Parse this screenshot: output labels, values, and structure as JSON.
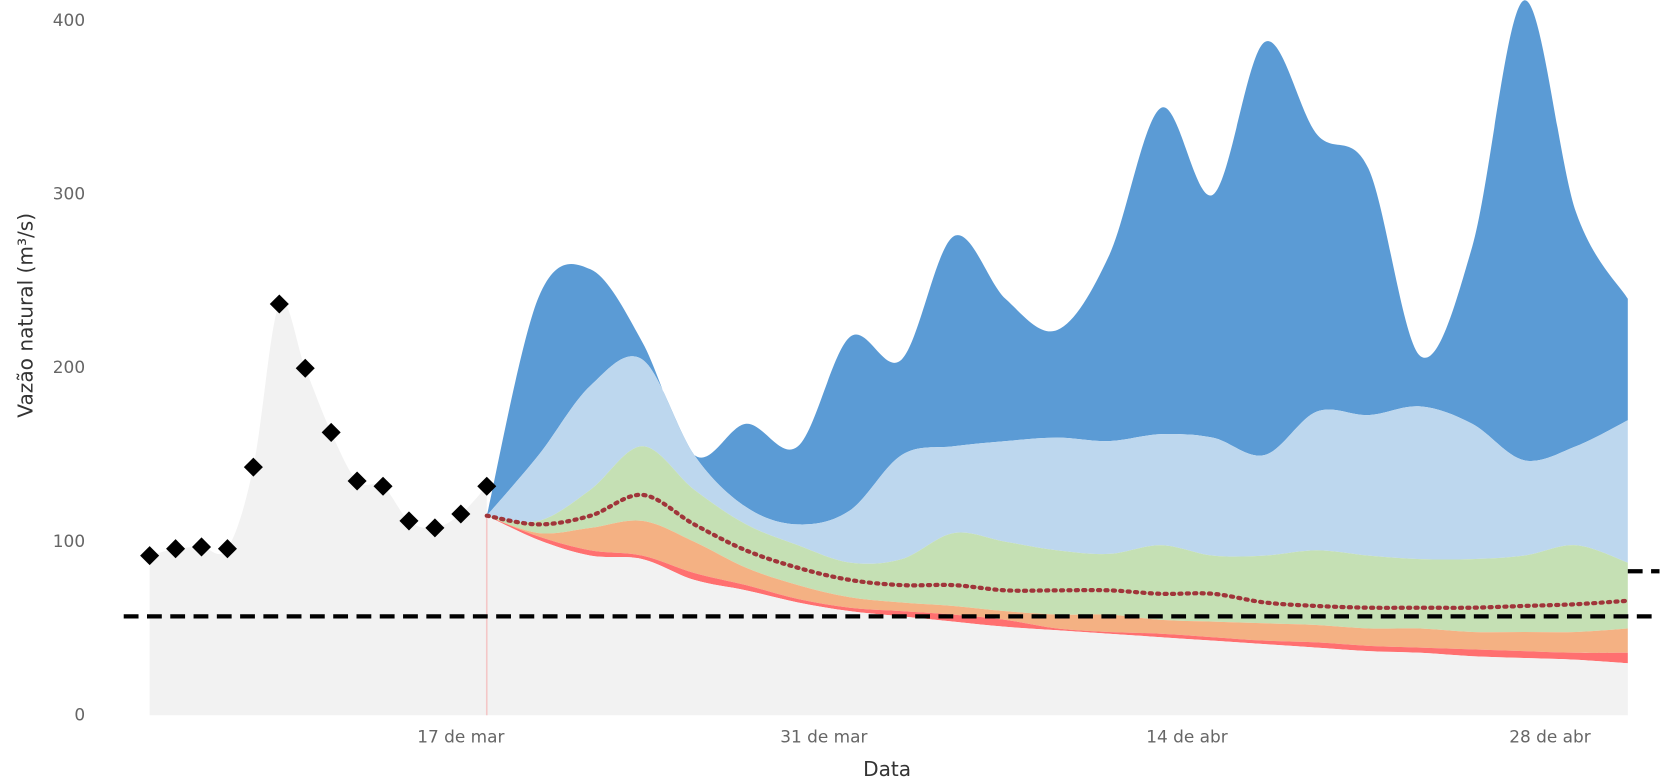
{
  "chart_data": {
    "type": "area",
    "x_label": "Data",
    "y_label": "Vazão natural (m³/s)",
    "xlim": [
      "03-04",
      "05-02"
    ],
    "xticks": [
      {
        "value": "03-17",
        "label": "17 de mar"
      },
      {
        "value": "03-31",
        "label": "31 de mar"
      },
      {
        "value": "04-14",
        "label": "14 de abr"
      },
      {
        "value": "04-28",
        "label": "28 de abr"
      }
    ],
    "ylim": [
      0,
      410
    ],
    "yticks": [
      0,
      100,
      200,
      300,
      400
    ],
    "observed": {
      "x": [
        "03-05",
        "03-06",
        "03-07",
        "03-08",
        "03-09",
        "03-10",
        "03-11",
        "03-12",
        "03-13",
        "03-14",
        "03-15",
        "03-16",
        "03-17",
        "03-18"
      ],
      "values": [
        92,
        96,
        97,
        96,
        143,
        237,
        200,
        163,
        135,
        132,
        112,
        108,
        116,
        132
      ],
      "color": "#000000",
      "fill": "#f2f2f2"
    },
    "x": [
      "03-18",
      "03-20",
      "03-22",
      "03-24",
      "03-26",
      "03-28",
      "03-30",
      "04-01",
      "04-03",
      "04-05",
      "04-07",
      "04-09",
      "04-11",
      "04-13",
      "04-15",
      "04-17",
      "04-19",
      "04-21",
      "04-23",
      "04-25",
      "04-27",
      "04-29",
      "05-01"
    ],
    "series": [
      {
        "color": "#5b9bd5",
        "values": [
          115,
          241,
          257,
          215,
          150,
          168,
          155,
          218,
          205,
          276,
          240,
          222,
          265,
          350,
          300,
          388,
          335,
          315,
          207,
          270,
          412,
          290,
          240
        ]
      },
      {
        "color": "#bdd7ee",
        "values": [
          115,
          150,
          190,
          205,
          150,
          120,
          110,
          118,
          150,
          155,
          158,
          160,
          158,
          162,
          160,
          150,
          175,
          173,
          178,
          168,
          147,
          155,
          170
        ]
      },
      {
        "color": "#c5e0b4",
        "values": [
          115,
          112,
          130,
          155,
          130,
          110,
          98,
          88,
          90,
          105,
          100,
          95,
          93,
          98,
          92,
          92,
          95,
          92,
          90,
          90,
          92,
          98,
          88
        ]
      },
      {
        "color": "#f4b183",
        "values": [
          115,
          105,
          108,
          112,
          100,
          85,
          75,
          68,
          65,
          63,
          60,
          58,
          58,
          55,
          54,
          53,
          52,
          50,
          50,
          48,
          48,
          48,
          50
        ]
      },
      {
        "color": "#ff7070",
        "values": [
          115,
          103,
          95,
          92,
          82,
          75,
          67,
          62,
          60,
          58,
          55,
          50,
          48,
          47,
          45,
          43,
          42,
          40,
          39,
          38,
          37,
          36,
          36
        ]
      },
      {
        "color": "#f2f2f2",
        "values": [
          115,
          101,
          92,
          90,
          78,
          72,
          65,
          60,
          57,
          54,
          51,
          49,
          47,
          45,
          43,
          41,
          39,
          37,
          36,
          34,
          33,
          32,
          30
        ]
      }
    ],
    "median": {
      "color": "#a0353a",
      "values": [
        115,
        110,
        115,
        127,
        110,
        95,
        85,
        78,
        75,
        75,
        72,
        72,
        72,
        70,
        70,
        65,
        63,
        62,
        62,
        62,
        63,
        64,
        66
      ]
    },
    "reference_lines": [
      {
        "value": 57,
        "from": "03-04",
        "to": "05-02",
        "color": "#000000"
      },
      {
        "value": 83,
        "from": "05-01",
        "to": "05-02",
        "color": "#000000"
      }
    ]
  }
}
